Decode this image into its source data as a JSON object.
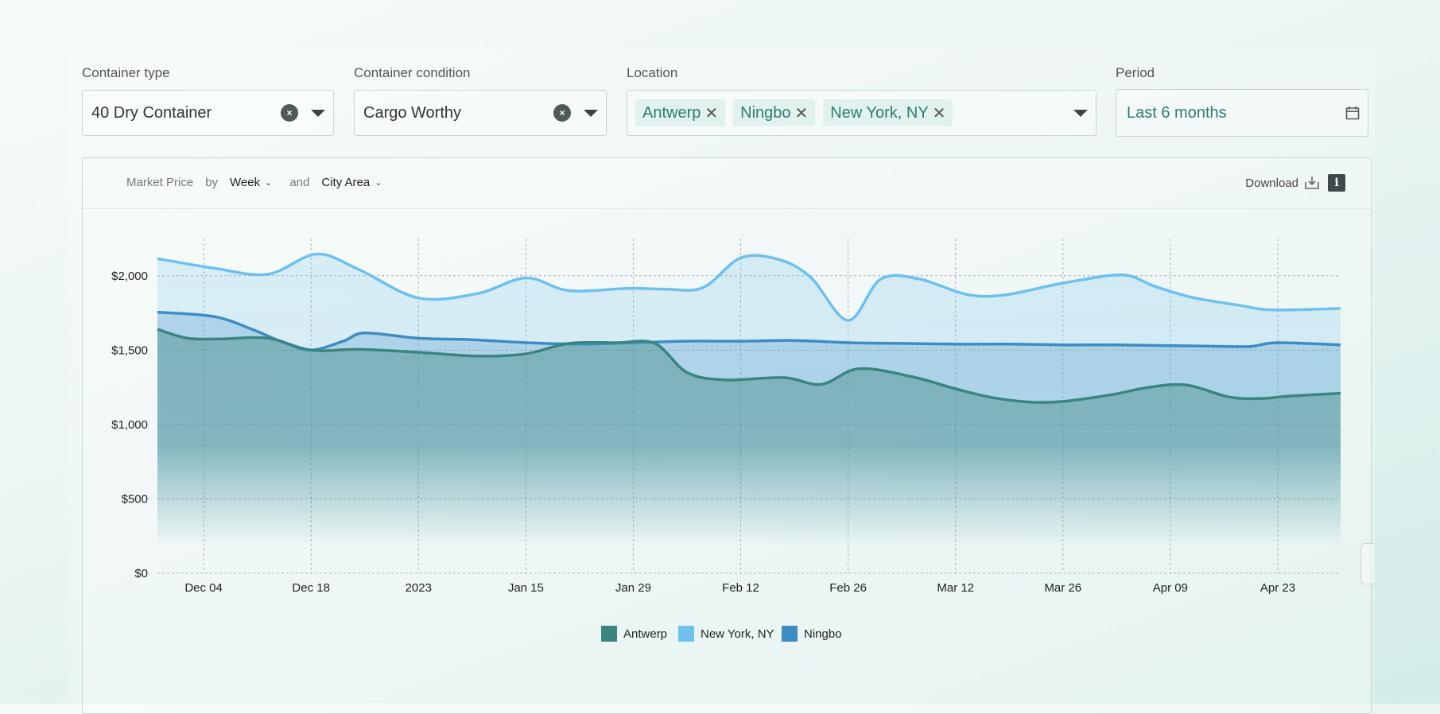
{
  "filters": {
    "container_type": {
      "label": "Container type",
      "value": "40 Dry Container",
      "clear": "×"
    },
    "container_condition": {
      "label": "Container condition",
      "value": "Cargo Worthy",
      "clear": "×"
    },
    "location": {
      "label": "Location",
      "chips": [
        "Antwerp",
        "Ningbo",
        "New York, NY"
      ],
      "remove": "✕"
    },
    "period": {
      "label": "Period",
      "value": "Last 6 months"
    }
  },
  "chart_header": {
    "metric": "Market Price",
    "by": "by",
    "granularity": "Week",
    "and": "and",
    "grouping": "City Area",
    "download": "Download",
    "info": "i"
  },
  "colors": {
    "antwerp": "#3b8580",
    "new_york": "#6ec0ee",
    "ningbo": "#3d8cc4"
  },
  "chart_data": {
    "type": "area",
    "title": "Market Price by Week and City Area",
    "xlabel": "",
    "ylabel": "Market Price",
    "ylim": [
      0,
      2250
    ],
    "y_ticks": [
      "$0",
      "$500",
      "$1,000",
      "$1,500",
      "$2,000"
    ],
    "y_tick_values": [
      0,
      500,
      1000,
      1500,
      2000
    ],
    "x_ticks": [
      "Dec 04",
      "Dec 18",
      "2023",
      "Jan 15",
      "Jan 29",
      "Feb 12",
      "Feb 26",
      "Mar 12",
      "Mar 26",
      "Apr 09",
      "Apr 23"
    ],
    "x_tick_weeks": [
      0,
      2,
      4,
      6,
      8,
      10,
      12,
      14,
      16,
      18,
      20
    ],
    "x_week_range": [
      -0.86,
      21.17
    ],
    "legend_position": "bottom-center",
    "series": [
      {
        "name": "Antwerp",
        "weeks": [
          -0.86,
          -0.3,
          0.3,
          1.2,
          2.0,
          2.9,
          4.0,
          5.1,
          6.0,
          6.8,
          7.7,
          8.4,
          9.0,
          9.7,
          10.8,
          11.5,
          12.2,
          13.2,
          14.0,
          14.7,
          15.4,
          16.0,
          16.9,
          17.6,
          18.3,
          19.1,
          19.7,
          20.2,
          21.17
        ],
        "values": [
          1640,
          1580,
          1575,
          1580,
          1500,
          1505,
          1485,
          1460,
          1475,
          1545,
          1550,
          1545,
          1350,
          1300,
          1315,
          1270,
          1375,
          1320,
          1240,
          1180,
          1150,
          1155,
          1200,
          1250,
          1265,
          1185,
          1175,
          1190,
          1210
        ]
      },
      {
        "name": "New York, NY",
        "weeks": [
          -0.86,
          0.2,
          1.2,
          2.1,
          2.9,
          4.0,
          5.1,
          6.0,
          6.8,
          7.9,
          8.6,
          9.3,
          10.0,
          10.7,
          11.3,
          12.0,
          12.6,
          13.3,
          14.2,
          14.9,
          16.0,
          17.1,
          17.7,
          18.4,
          19.3,
          19.9,
          21.17
        ],
        "values": [
          2115,
          2050,
          2010,
          2145,
          2040,
          1850,
          1880,
          1985,
          1900,
          1915,
          1910,
          1920,
          2120,
          2110,
          1990,
          1700,
          1975,
          1980,
          1875,
          1870,
          1950,
          2005,
          1930,
          1855,
          1800,
          1770,
          1780
        ]
      },
      {
        "name": "Ningbo",
        "weeks": [
          -0.86,
          0.2,
          0.9,
          1.5,
          2.0,
          2.6,
          3.0,
          4.0,
          5.0,
          6.0,
          7.0,
          8.0,
          9.0,
          10.0,
          11.0,
          12.0,
          13.0,
          14.0,
          15.0,
          16.0,
          17.0,
          18.0,
          19.0,
          19.5,
          20.0,
          21.17
        ],
        "values": [
          1755,
          1725,
          1640,
          1550,
          1500,
          1560,
          1615,
          1580,
          1570,
          1550,
          1540,
          1550,
          1560,
          1560,
          1565,
          1550,
          1545,
          1540,
          1540,
          1535,
          1535,
          1530,
          1525,
          1525,
          1550,
          1535
        ]
      }
    ]
  }
}
